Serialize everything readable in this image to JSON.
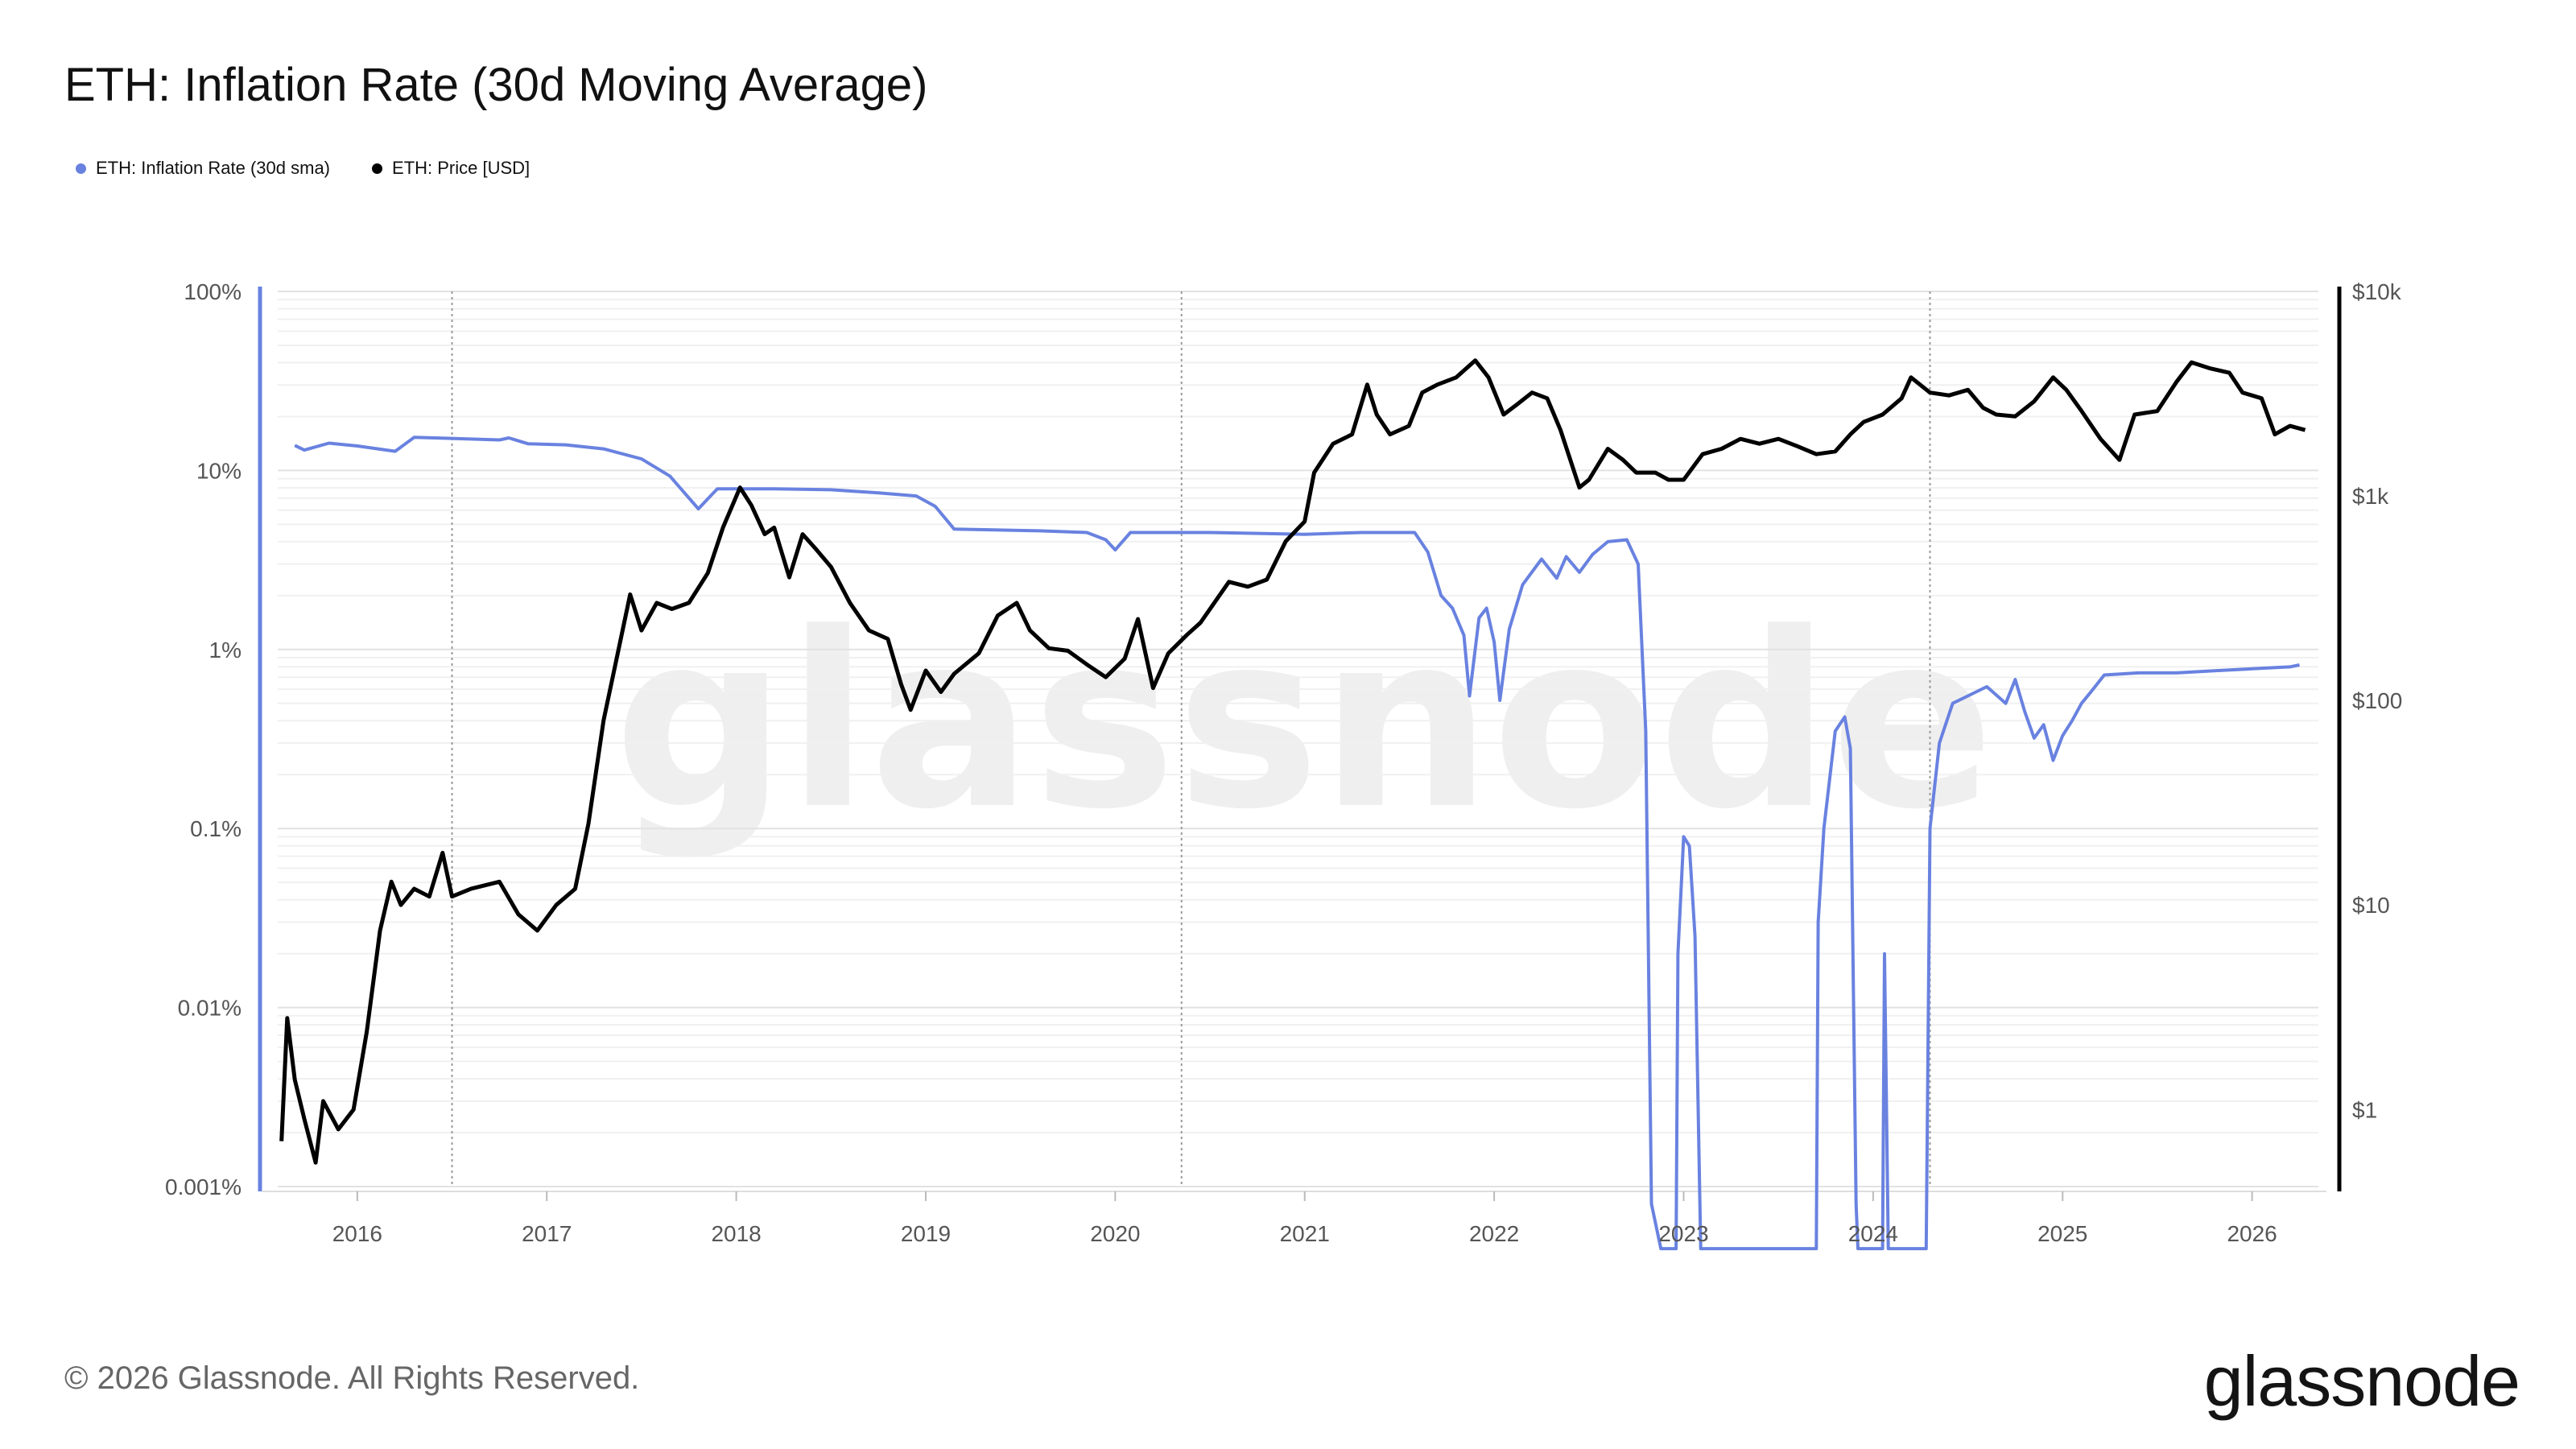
{
  "chart_data": {
    "type": "line",
    "title": "ETH: Inflation Rate (30d Moving Average)",
    "watermark": "glassnode",
    "legend": [
      {
        "name": "ETH: Inflation Rate (30d sma)",
        "color": "#6982e0"
      },
      {
        "name": "ETH: Price [USD]",
        "color": "#000000"
      }
    ],
    "legend_placement": "top-left",
    "x_range": [
      2015.58,
      2026.35
    ],
    "x_ticks": [
      "2016",
      "2017",
      "2018",
      "2019",
      "2020",
      "2021",
      "2022",
      "2023",
      "2024",
      "2025",
      "2026"
    ],
    "y_left": {
      "scale": "log",
      "range": [
        0.001,
        100
      ],
      "unit": "%",
      "tick_values": [
        100,
        10,
        1,
        0.1,
        0.01,
        0.001
      ],
      "tick_labels": [
        "100%",
        "10%",
        "1%",
        "0.1%",
        "0.01%",
        "0.001%"
      ]
    },
    "y_right": {
      "scale": "log",
      "range": [
        0.42,
        10000
      ],
      "tick_values": [
        10000,
        1000,
        100,
        10,
        1
      ],
      "tick_labels": [
        "$10k",
        "$1k",
        "$100",
        "$10",
        "$1"
      ]
    },
    "event_lines": [
      2016.5,
      2020.35,
      2024.3
    ],
    "grid": true,
    "series": [
      {
        "name": "ETH: Inflation Rate (30d sma)",
        "axis": "left",
        "color": "#6982e0",
        "points": [
          [
            2015.67,
            13.8
          ],
          [
            2015.72,
            13.0
          ],
          [
            2015.85,
            14.2
          ],
          [
            2016.0,
            13.7
          ],
          [
            2016.2,
            12.8
          ],
          [
            2016.3,
            15.3
          ],
          [
            2016.5,
            15.1
          ],
          [
            2016.75,
            14.8
          ],
          [
            2016.8,
            15.2
          ],
          [
            2016.9,
            14.1
          ],
          [
            2017.1,
            13.9
          ],
          [
            2017.3,
            13.2
          ],
          [
            2017.5,
            11.6
          ],
          [
            2017.65,
            9.3
          ],
          [
            2017.8,
            6.1
          ],
          [
            2017.9,
            7.9
          ],
          [
            2018.2,
            7.9
          ],
          [
            2018.5,
            7.8
          ],
          [
            2018.75,
            7.5
          ],
          [
            2018.95,
            7.2
          ],
          [
            2019.05,
            6.3
          ],
          [
            2019.15,
            4.7
          ],
          [
            2019.6,
            4.6
          ],
          [
            2019.85,
            4.5
          ],
          [
            2019.95,
            4.1
          ],
          [
            2020.0,
            3.6
          ],
          [
            2020.08,
            4.5
          ],
          [
            2020.5,
            4.5
          ],
          [
            2021.0,
            4.4
          ],
          [
            2021.3,
            4.5
          ],
          [
            2021.58,
            4.5
          ],
          [
            2021.65,
            3.5
          ],
          [
            2021.72,
            2.0
          ],
          [
            2021.78,
            1.7
          ],
          [
            2021.84,
            1.2
          ],
          [
            2021.87,
            0.55
          ],
          [
            2021.92,
            1.5
          ],
          [
            2021.96,
            1.7
          ],
          [
            2022.0,
            1.1
          ],
          [
            2022.03,
            0.52
          ],
          [
            2022.08,
            1.3
          ],
          [
            2022.15,
            2.3
          ],
          [
            2022.25,
            3.2
          ],
          [
            2022.33,
            2.5
          ],
          [
            2022.38,
            3.3
          ],
          [
            2022.45,
            2.7
          ],
          [
            2022.52,
            3.4
          ],
          [
            2022.6,
            4.0
          ],
          [
            2022.7,
            4.1
          ],
          [
            2022.76,
            3.0
          ],
          [
            2022.8,
            0.35
          ],
          [
            2022.83,
            0.0008
          ],
          [
            2022.88,
            0.00045
          ],
          [
            2022.96,
            0.00045
          ],
          [
            2022.97,
            0.02
          ],
          [
            2023.0,
            0.09
          ],
          [
            2023.03,
            0.08
          ],
          [
            2023.06,
            0.025
          ],
          [
            2023.09,
            0.00045
          ],
          [
            2023.7,
            0.00045
          ],
          [
            2023.71,
            0.03
          ],
          [
            2023.74,
            0.1
          ],
          [
            2023.8,
            0.35
          ],
          [
            2023.85,
            0.42
          ],
          [
            2023.88,
            0.28
          ],
          [
            2023.91,
            0.0008
          ],
          [
            2023.92,
            0.00045
          ],
          [
            2024.05,
            0.00045
          ],
          [
            2024.06,
            0.02
          ],
          [
            2024.08,
            0.00045
          ],
          [
            2024.28,
            0.00045
          ],
          [
            2024.3,
            0.1
          ],
          [
            2024.35,
            0.3
          ],
          [
            2024.42,
            0.5
          ],
          [
            2024.5,
            0.55
          ],
          [
            2024.6,
            0.62
          ],
          [
            2024.7,
            0.5
          ],
          [
            2024.75,
            0.68
          ],
          [
            2024.8,
            0.45
          ],
          [
            2024.85,
            0.32
          ],
          [
            2024.9,
            0.38
          ],
          [
            2024.95,
            0.24
          ],
          [
            2025.0,
            0.33
          ],
          [
            2025.05,
            0.4
          ],
          [
            2025.1,
            0.5
          ],
          [
            2025.15,
            0.58
          ],
          [
            2025.22,
            0.72
          ],
          [
            2025.4,
            0.74
          ],
          [
            2025.6,
            0.74
          ],
          [
            2025.8,
            0.76
          ],
          [
            2026.0,
            0.78
          ],
          [
            2026.2,
            0.8
          ],
          [
            2026.25,
            0.82
          ]
        ]
      },
      {
        "name": "ETH: Price [USD]",
        "axis": "right",
        "color": "#000000",
        "points": [
          [
            2015.6,
            0.7
          ],
          [
            2015.63,
            2.8
          ],
          [
            2015.67,
            1.4
          ],
          [
            2015.72,
            0.9
          ],
          [
            2015.78,
            0.55
          ],
          [
            2015.82,
            1.1
          ],
          [
            2015.9,
            0.8
          ],
          [
            2015.98,
            1.0
          ],
          [
            2016.05,
            2.4
          ],
          [
            2016.12,
            7.5
          ],
          [
            2016.18,
            13
          ],
          [
            2016.23,
            10
          ],
          [
            2016.3,
            12
          ],
          [
            2016.38,
            11
          ],
          [
            2016.45,
            18
          ],
          [
            2016.5,
            11
          ],
          [
            2016.6,
            12
          ],
          [
            2016.75,
            13
          ],
          [
            2016.85,
            9
          ],
          [
            2016.95,
            7.5
          ],
          [
            2017.05,
            10
          ],
          [
            2017.15,
            12
          ],
          [
            2017.22,
            25
          ],
          [
            2017.3,
            80
          ],
          [
            2017.38,
            180
          ],
          [
            2017.44,
            330
          ],
          [
            2017.5,
            220
          ],
          [
            2017.58,
            300
          ],
          [
            2017.66,
            280
          ],
          [
            2017.75,
            300
          ],
          [
            2017.85,
            420
          ],
          [
            2017.93,
            700
          ],
          [
            2018.02,
            1100
          ],
          [
            2018.08,
            900
          ],
          [
            2018.15,
            650
          ],
          [
            2018.2,
            700
          ],
          [
            2018.28,
            400
          ],
          [
            2018.35,
            650
          ],
          [
            2018.42,
            550
          ],
          [
            2018.5,
            450
          ],
          [
            2018.6,
            300
          ],
          [
            2018.7,
            220
          ],
          [
            2018.8,
            200
          ],
          [
            2018.87,
            120
          ],
          [
            2018.92,
            90
          ],
          [
            2019.0,
            140
          ],
          [
            2019.08,
            110
          ],
          [
            2019.15,
            135
          ],
          [
            2019.28,
            170
          ],
          [
            2019.38,
            260
          ],
          [
            2019.48,
            300
          ],
          [
            2019.55,
            220
          ],
          [
            2019.65,
            180
          ],
          [
            2019.75,
            175
          ],
          [
            2019.85,
            150
          ],
          [
            2019.95,
            130
          ],
          [
            2020.05,
            160
          ],
          [
            2020.12,
            250
          ],
          [
            2020.2,
            115
          ],
          [
            2020.28,
            170
          ],
          [
            2020.38,
            210
          ],
          [
            2020.45,
            240
          ],
          [
            2020.6,
            380
          ],
          [
            2020.7,
            360
          ],
          [
            2020.8,
            390
          ],
          [
            2020.9,
            600
          ],
          [
            2021.0,
            750
          ],
          [
            2021.05,
            1300
          ],
          [
            2021.15,
            1800
          ],
          [
            2021.25,
            2000
          ],
          [
            2021.33,
            3500
          ],
          [
            2021.38,
            2500
          ],
          [
            2021.45,
            2000
          ],
          [
            2021.55,
            2200
          ],
          [
            2021.62,
            3200
          ],
          [
            2021.7,
            3500
          ],
          [
            2021.8,
            3800
          ],
          [
            2021.9,
            4600
          ],
          [
            2021.97,
            3800
          ],
          [
            2022.05,
            2500
          ],
          [
            2022.12,
            2800
          ],
          [
            2022.2,
            3200
          ],
          [
            2022.28,
            3000
          ],
          [
            2022.35,
            2100
          ],
          [
            2022.45,
            1100
          ],
          [
            2022.5,
            1200
          ],
          [
            2022.6,
            1700
          ],
          [
            2022.68,
            1500
          ],
          [
            2022.75,
            1300
          ],
          [
            2022.85,
            1300
          ],
          [
            2022.92,
            1200
          ],
          [
            2023.0,
            1200
          ],
          [
            2023.1,
            1600
          ],
          [
            2023.2,
            1700
          ],
          [
            2023.3,
            1900
          ],
          [
            2023.4,
            1800
          ],
          [
            2023.5,
            1900
          ],
          [
            2023.6,
            1750
          ],
          [
            2023.7,
            1600
          ],
          [
            2023.8,
            1650
          ],
          [
            2023.88,
            2000
          ],
          [
            2023.95,
            2300
          ],
          [
            2024.05,
            2500
          ],
          [
            2024.15,
            3000
          ],
          [
            2024.2,
            3800
          ],
          [
            2024.3,
            3200
          ],
          [
            2024.4,
            3100
          ],
          [
            2024.5,
            3300
          ],
          [
            2024.58,
            2700
          ],
          [
            2024.65,
            2500
          ],
          [
            2024.75,
            2450
          ],
          [
            2024.85,
            2900
          ],
          [
            2024.95,
            3800
          ],
          [
            2025.02,
            3300
          ],
          [
            2025.1,
            2600
          ],
          [
            2025.2,
            1900
          ],
          [
            2025.3,
            1500
          ],
          [
            2025.38,
            2500
          ],
          [
            2025.5,
            2600
          ],
          [
            2025.6,
            3600
          ],
          [
            2025.68,
            4500
          ],
          [
            2025.78,
            4200
          ],
          [
            2025.88,
            4000
          ],
          [
            2025.95,
            3200
          ],
          [
            2026.05,
            3000
          ],
          [
            2026.12,
            2000
          ],
          [
            2026.2,
            2200
          ],
          [
            2026.28,
            2100
          ]
        ]
      }
    ]
  },
  "footer": {
    "copyright": "© 2026 Glassnode. All Rights Reserved.",
    "logo": "glassnode"
  }
}
